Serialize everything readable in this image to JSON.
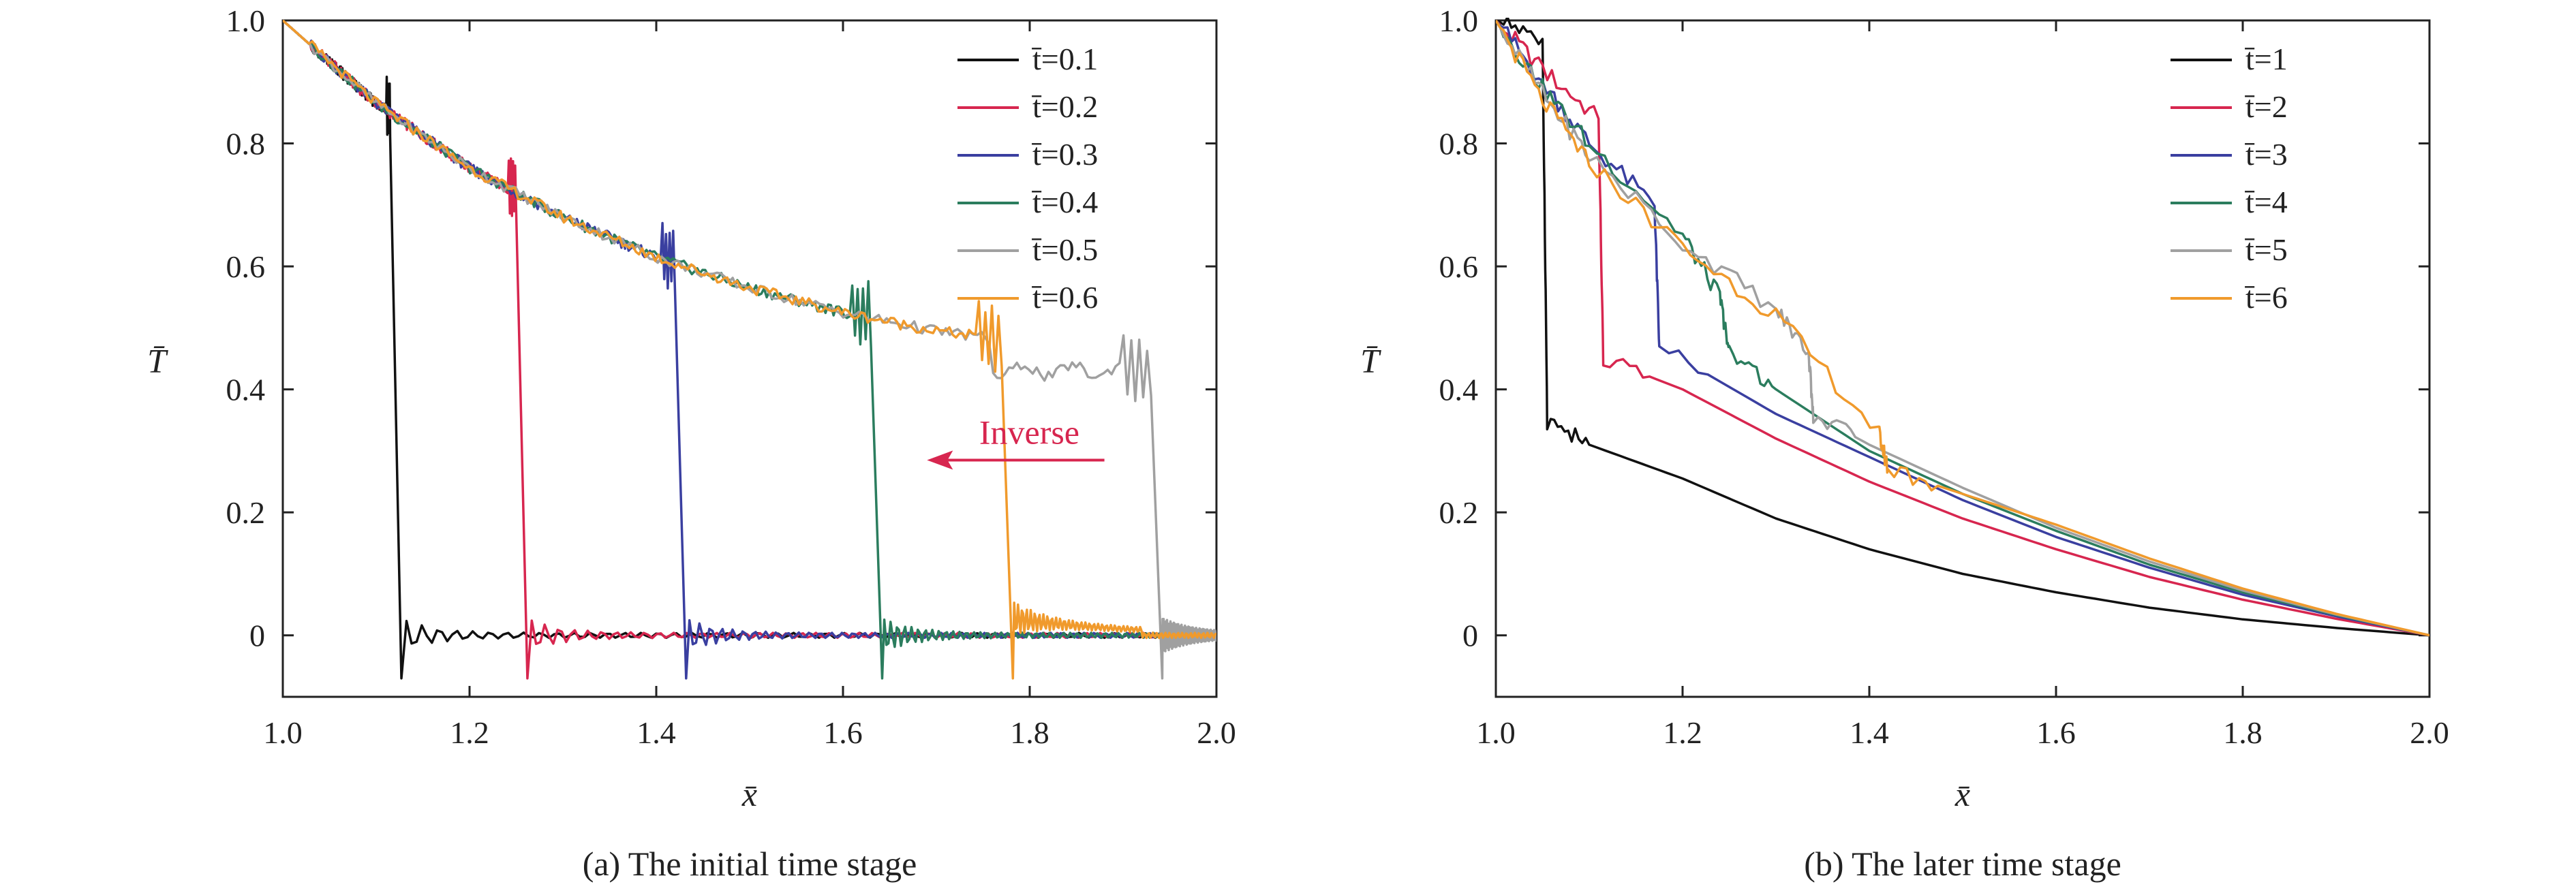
{
  "colors": {
    "black": "#111111",
    "red": "#d7264f",
    "blue": "#3a3fa0",
    "green": "#2b7d5e",
    "gray": "#a0a0a0",
    "orange": "#f09a2c",
    "annot": "#d7264f"
  },
  "chart_data": [
    {
      "type": "line",
      "caption": "(a) The initial time stage",
      "xlabel": "x̄",
      "ylabel": "T̄",
      "xlim": [
        1.0,
        2.0
      ],
      "ylim": [
        -0.1,
        1.0
      ],
      "xticks": [
        "1.0",
        "1.2",
        "1.4",
        "1.6",
        "1.8",
        "2.0"
      ],
      "yticks": [
        "0",
        "0.2",
        "0.4",
        "0.6",
        "0.8",
        "1.0"
      ],
      "legend_position": "top-right",
      "annotation": {
        "text": "Inverse",
        "arrow_from_x": 1.88,
        "arrow_to_x": 1.69,
        "y": 0.285
      },
      "series": [
        {
          "name": "t̄=0.1",
          "color_key": "black",
          "front": 1.115
        },
        {
          "name": "t̄=0.2",
          "color_key": "red",
          "front": 1.25
        },
        {
          "name": "t̄=0.3",
          "color_key": "blue",
          "front": 1.42
        },
        {
          "name": "t̄=0.4",
          "color_key": "green",
          "front": 1.63
        },
        {
          "name": "t̄=0.5",
          "color_key": "gray",
          "front": 1.93
        },
        {
          "name": "t̄=0.6",
          "color_key": "orange",
          "front": 1.77
        }
      ],
      "curve_points": [
        [
          1.0,
          1.0
        ],
        [
          1.1,
          0.865
        ],
        [
          1.2,
          0.76
        ],
        [
          1.3,
          0.68
        ],
        [
          1.4,
          0.615
        ],
        [
          1.5,
          0.565
        ],
        [
          1.6,
          0.525
        ],
        [
          1.7,
          0.495
        ],
        [
          1.75,
          0.485
        ],
        [
          1.8,
          0.445
        ],
        [
          1.9,
          0.43
        ]
      ]
    },
    {
      "type": "line",
      "caption": "(b) The later time stage",
      "xlabel": "x̄",
      "ylabel": "T̄",
      "xlim": [
        1.0,
        2.0
      ],
      "ylim": [
        -0.1,
        1.0
      ],
      "xticks": [
        "1.0",
        "1.2",
        "1.4",
        "1.6",
        "1.8",
        "2.0"
      ],
      "yticks": [
        "0",
        "0.2",
        "0.4",
        "0.6",
        "0.8",
        "1.0"
      ],
      "legend_position": "top-right",
      "series": [
        {
          "name": "t̄=1",
          "color_key": "black",
          "front": 1.05,
          "points": [
            [
              1.0,
              1.0
            ],
            [
              1.05,
              0.97
            ],
            [
              1.055,
              0.35
            ],
            [
              1.1,
              0.31
            ],
            [
              1.2,
              0.255
            ],
            [
              1.3,
              0.19
            ],
            [
              1.4,
              0.14
            ],
            [
              1.5,
              0.1
            ],
            [
              1.6,
              0.07
            ],
            [
              1.7,
              0.045
            ],
            [
              1.8,
              0.026
            ],
            [
              1.9,
              0.012
            ],
            [
              2.0,
              0.0
            ]
          ]
        },
        {
          "name": "t̄=2",
          "color_key": "red",
          "front": 1.11,
          "points": [
            [
              1.0,
              1.0
            ],
            [
              1.05,
              0.92
            ],
            [
              1.11,
              0.84
            ],
            [
              1.115,
              0.45
            ],
            [
              1.2,
              0.4
            ],
            [
              1.3,
              0.32
            ],
            [
              1.4,
              0.25
            ],
            [
              1.5,
              0.19
            ],
            [
              1.6,
              0.14
            ],
            [
              1.7,
              0.095
            ],
            [
              1.8,
              0.058
            ],
            [
              1.9,
              0.027
            ],
            [
              2.0,
              0.0
            ]
          ]
        },
        {
          "name": "t̄=3",
          "color_key": "blue",
          "front": 1.175,
          "points": [
            [
              1.0,
              1.0
            ],
            [
              1.05,
              0.9
            ],
            [
              1.1,
              0.8
            ],
            [
              1.17,
              0.7
            ],
            [
              1.175,
              0.47
            ],
            [
              1.3,
              0.36
            ],
            [
              1.4,
              0.29
            ],
            [
              1.5,
              0.22
            ],
            [
              1.6,
              0.16
            ],
            [
              1.7,
              0.11
            ],
            [
              1.8,
              0.066
            ],
            [
              1.9,
              0.031
            ],
            [
              2.0,
              0.0
            ]
          ]
        },
        {
          "name": "t̄=4",
          "color_key": "green",
          "front": 1.245,
          "points": [
            [
              1.0,
              1.0
            ],
            [
              1.05,
              0.89
            ],
            [
              1.1,
              0.8
            ],
            [
              1.2,
              0.65
            ],
            [
              1.24,
              0.55
            ],
            [
              1.25,
              0.46
            ],
            [
              1.3,
              0.4
            ],
            [
              1.4,
              0.3
            ],
            [
              1.5,
              0.23
            ],
            [
              1.6,
              0.17
            ],
            [
              1.7,
              0.115
            ],
            [
              1.8,
              0.07
            ],
            [
              1.9,
              0.033
            ],
            [
              2.0,
              0.0
            ]
          ]
        },
        {
          "name": "t̄=5",
          "color_key": "gray",
          "front": 1.335,
          "points": [
            [
              1.0,
              1.0
            ],
            [
              1.05,
              0.88
            ],
            [
              1.1,
              0.78
            ],
            [
              1.2,
              0.64
            ],
            [
              1.3,
              0.53
            ],
            [
              1.335,
              0.46
            ],
            [
              1.34,
              0.36
            ],
            [
              1.4,
              0.31
            ],
            [
              1.5,
              0.24
            ],
            [
              1.6,
              0.175
            ],
            [
              1.7,
              0.12
            ],
            [
              1.8,
              0.073
            ],
            [
              1.9,
              0.034
            ],
            [
              2.0,
              0.0
            ]
          ]
        },
        {
          "name": "t̄=6",
          "color_key": "orange",
          "front": 1.42,
          "points": [
            [
              1.0,
              1.0
            ],
            [
              1.05,
              0.87
            ],
            [
              1.1,
              0.77
            ],
            [
              1.2,
              0.63
            ],
            [
              1.3,
              0.52
            ],
            [
              1.41,
              0.33
            ],
            [
              1.42,
              0.27
            ],
            [
              1.5,
              0.23
            ],
            [
              1.6,
              0.18
            ],
            [
              1.7,
              0.125
            ],
            [
              1.8,
              0.076
            ],
            [
              1.9,
              0.035
            ],
            [
              2.0,
              0.0
            ]
          ]
        }
      ]
    }
  ]
}
